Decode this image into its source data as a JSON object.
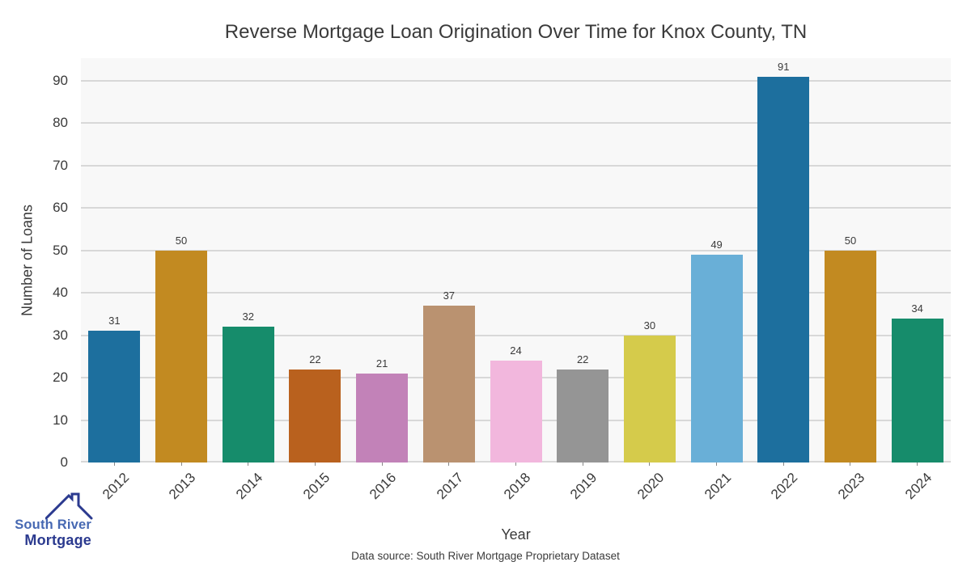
{
  "chart_data": {
    "type": "bar",
    "title": "Reverse Mortgage Loan Origination Over Time for Knox County, TN",
    "xlabel": "Year",
    "ylabel": "Number of Loans",
    "categories": [
      "2012",
      "2013",
      "2014",
      "2015",
      "2016",
      "2017",
      "2018",
      "2019",
      "2020",
      "2021",
      "2022",
      "2023",
      "2024"
    ],
    "values": [
      31,
      50,
      32,
      22,
      21,
      37,
      24,
      22,
      30,
      49,
      91,
      50,
      34
    ],
    "ylim": [
      0,
      95
    ],
    "yticks": [
      0,
      10,
      20,
      30,
      40,
      50,
      60,
      70,
      80,
      90
    ],
    "grid": true,
    "legend": "none",
    "bar_colors": [
      "#1d6f9e",
      "#c28a21",
      "#168c6b",
      "#b9611e",
      "#c282b8",
      "#ba9270",
      "#f2b7dd",
      "#959595",
      "#d5cb4b",
      "#69afd7"
    ],
    "plot_bg": "#f8f8f8",
    "grid_color": "#d8d8d8",
    "text_color": "#3a3a3a"
  },
  "footer": {
    "data_source": "Data source: South River Mortgage Proprietary Dataset"
  },
  "logo": {
    "line1": "South River",
    "line2": "Mortgage",
    "color1": "#4668b2",
    "color2": "#2b3a8f"
  }
}
